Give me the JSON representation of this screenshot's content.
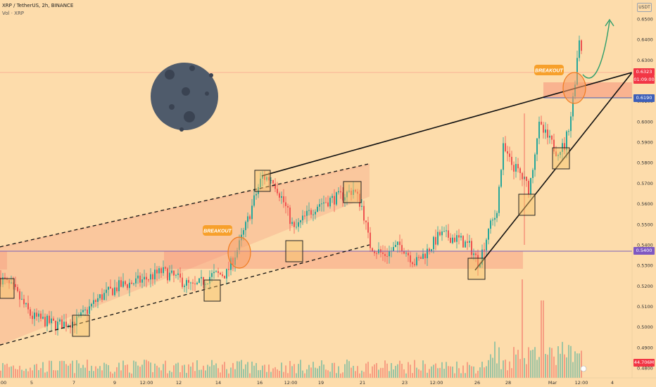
{
  "header": {
    "symbol": "XRP / TetherUS, 2h, BINANCE",
    "volume_label": "Vol · XRP"
  },
  "currency_button": "USDT",
  "chart_data": {
    "type": "candlestick",
    "title": "XRP / TetherUS, 2h, BINANCE",
    "ylim": [
      0.478,
      0.661
    ],
    "y_ticks": [
      "0.6500",
      "0.6400",
      "0.6300",
      "0.6200",
      "0.6100",
      "0.6000",
      "0.5900",
      "0.5800",
      "0.5700",
      "0.5600",
      "0.5500",
      "0.5400",
      "0.5300",
      "0.5200",
      "0.5100",
      "0.5000",
      "0.4900",
      "0.4800"
    ],
    "x_ticks": [
      ":00",
      "5",
      "7",
      "9",
      "12:00",
      "12",
      "14",
      "16",
      "12:00",
      "19",
      "21",
      "23",
      "12:00",
      "26",
      "28",
      "Mar",
      "12:00",
      "4"
    ],
    "price_path": [
      [
        0,
        0.524
      ],
      [
        20,
        0.518
      ],
      [
        45,
        0.505
      ],
      [
        80,
        0.501
      ],
      [
        110,
        0.503
      ],
      [
        140,
        0.514
      ],
      [
        170,
        0.52
      ],
      [
        205,
        0.523
      ],
      [
        230,
        0.527
      ],
      [
        255,
        0.523
      ],
      [
        275,
        0.519
      ],
      [
        300,
        0.525
      ],
      [
        322,
        0.526
      ],
      [
        340,
        0.54
      ],
      [
        352,
        0.552
      ],
      [
        362,
        0.563
      ],
      [
        372,
        0.573
      ],
      [
        388,
        0.572
      ],
      [
        404,
        0.56
      ],
      [
        418,
        0.547
      ],
      [
        432,
        0.553
      ],
      [
        452,
        0.56
      ],
      [
        470,
        0.562
      ],
      [
        488,
        0.564
      ],
      [
        502,
        0.567
      ],
      [
        515,
        0.558
      ],
      [
        525,
        0.54
      ],
      [
        545,
        0.535
      ],
      [
        570,
        0.54
      ],
      [
        590,
        0.531
      ],
      [
        607,
        0.537
      ],
      [
        625,
        0.545
      ],
      [
        650,
        0.543
      ],
      [
        668,
        0.539
      ],
      [
        680,
        0.531
      ],
      [
        695,
        0.548
      ],
      [
        705,
        0.555
      ],
      [
        715,
        0.587
      ],
      [
        725,
        0.58
      ],
      [
        738,
        0.575
      ],
      [
        752,
        0.567
      ],
      [
        765,
        0.598
      ],
      [
        778,
        0.592
      ],
      [
        790,
        0.586
      ],
      [
        802,
        0.588
      ],
      [
        812,
        0.605
      ],
      [
        818,
        0.624
      ],
      [
        823,
        0.641
      ],
      [
        828,
        0.632
      ]
    ],
    "annotations": {
      "breakout_labels": [
        "BREAKOUT",
        "BREAKOUT"
      ],
      "horizontal_levels": [
        0.54,
        0.619
      ],
      "current_price": 0.6323,
      "countdown": "01:09:00",
      "level_label": "0.6190",
      "support_label": "0.5400",
      "volume_value": "44.706M"
    },
    "colors": {
      "up": "#26a69a",
      "down": "#ef5350",
      "zone": "#f5927a",
      "level": "#7b61b8",
      "pricetag": "#f23645",
      "leveltag": "#3d5fb8",
      "supporttag": "#7e58c2",
      "box": "#f6c368",
      "moon": "#4f5b6b"
    }
  }
}
